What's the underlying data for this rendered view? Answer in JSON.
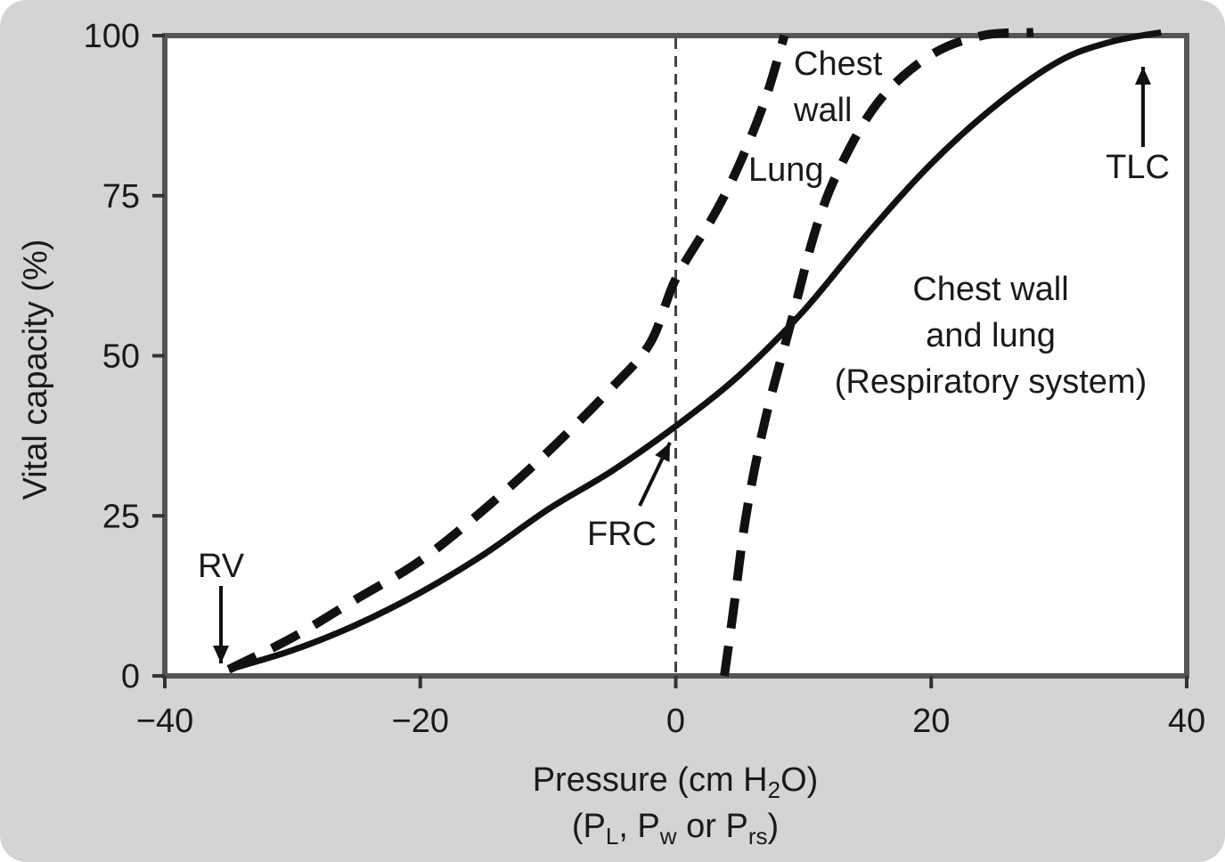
{
  "chart_data": {
    "type": "line",
    "title": "",
    "xlabel_line1": "Pressure (cm H",
    "xlabel_line1_sub": "2",
    "xlabel_line1_end": "O)",
    "xlabel_line2": {
      "open": "(P",
      "sub1": "L",
      "mid1": ", P",
      "sub2": "w",
      "mid2": " or P",
      "sub3": "rs",
      "close": ")"
    },
    "ylabel": "Vital capacity (%)",
    "xlim": [
      -40,
      40
    ],
    "ylim": [
      0,
      100
    ],
    "x_ticks": [
      -40,
      -20,
      0,
      20,
      40
    ],
    "x_tick_labels": [
      "−40",
      "−20",
      "0",
      "20",
      "40"
    ],
    "y_ticks": [
      0,
      25,
      50,
      75,
      100
    ],
    "y_tick_labels": [
      "0",
      "25",
      "50",
      "75",
      "100"
    ],
    "grid": false,
    "reference_line": {
      "x": 0,
      "style": "dashed"
    },
    "series": [
      {
        "name": "Lung",
        "style": "dashed",
        "points": [
          [
            -35,
            1
          ],
          [
            -30,
            6
          ],
          [
            -25,
            12
          ],
          [
            -20,
            18
          ],
          [
            -15,
            26
          ],
          [
            -10,
            35
          ],
          [
            -5,
            45
          ],
          [
            -2,
            52
          ],
          [
            0,
            62
          ],
          [
            3,
            72
          ],
          [
            5,
            80
          ],
          [
            7,
            90
          ],
          [
            8.5,
            100
          ]
        ]
      },
      {
        "name": "Chest wall",
        "style": "dashed",
        "points": [
          [
            3.8,
            0
          ],
          [
            4.5,
            10
          ],
          [
            5.5,
            25
          ],
          [
            7,
            40
          ],
          [
            9,
            55
          ],
          [
            11,
            70
          ],
          [
            13,
            80
          ],
          [
            16,
            90
          ],
          [
            20,
            97
          ],
          [
            24,
            100
          ],
          [
            28,
            100.5
          ]
        ]
      },
      {
        "name": "Chest wall and lung (Respiratory system)",
        "style": "solid",
        "points": [
          [
            -35,
            1
          ],
          [
            -30,
            4
          ],
          [
            -25,
            8
          ],
          [
            -20,
            13
          ],
          [
            -15,
            19
          ],
          [
            -10,
            26
          ],
          [
            -5,
            32
          ],
          [
            0,
            39
          ],
          [
            5,
            47
          ],
          [
            10,
            57
          ],
          [
            15,
            69
          ],
          [
            20,
            80
          ],
          [
            25,
            89
          ],
          [
            30,
            96
          ],
          [
            34,
            99
          ],
          [
            38,
            100.5
          ]
        ]
      }
    ],
    "annotations": [
      {
        "id": "chest-wall",
        "lines": [
          "Chest",
          "wall"
        ]
      },
      {
        "id": "lung",
        "lines": [
          "Lung"
        ]
      },
      {
        "id": "respiratory-system",
        "lines": [
          "Chest wall",
          "and lung",
          "(Respiratory system)"
        ]
      },
      {
        "id": "tlc",
        "lines": [
          "TLC"
        ]
      },
      {
        "id": "frc",
        "lines": [
          "FRC"
        ]
      },
      {
        "id": "rv",
        "lines": [
          "RV"
        ]
      }
    ]
  }
}
